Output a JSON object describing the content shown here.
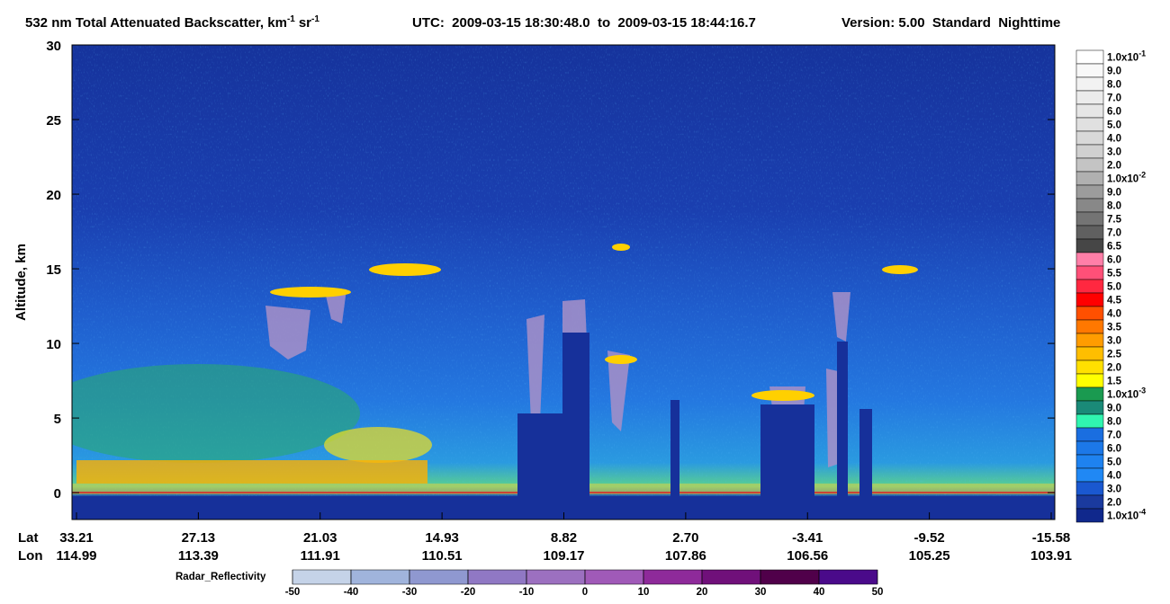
{
  "chart_data": {
    "type": "heatmap",
    "title": [
      "532 nm Total Attenuated Backscatter, km",
      "-1",
      "sr",
      "-1"
    ],
    "time_range": "UTC:  2009-03-15 18:30:48.0  to  2009-03-15 18:44:16.7",
    "version": "Version: 5.00  Standard  Nighttime",
    "ylabel": "Altitude, km",
    "ylim": [
      -1.8,
      30
    ],
    "yticks": [
      0,
      5,
      10,
      15,
      20,
      25,
      30
    ],
    "x_row_labels": [
      "Lat",
      "Lon"
    ],
    "lat": [
      "33.21",
      "27.13",
      "21.03",
      "14.93",
      "8.82",
      "2.70",
      "-3.41",
      "-9.52",
      "-15.58"
    ],
    "lon": [
      "114.99",
      "113.39",
      "111.91",
      "110.51",
      "109.17",
      "107.86",
      "106.56",
      "105.25",
      "103.91"
    ],
    "colorbar": [
      {
        "label": "1.0x10",
        "sup": "-1",
        "color": "#ffffff"
      },
      {
        "label": "9.0",
        "color": "#f8f8f8"
      },
      {
        "label": "8.0",
        "color": "#f2f2f2"
      },
      {
        "label": "7.0",
        "color": "#ececec"
      },
      {
        "label": "6.0",
        "color": "#e6e6e6"
      },
      {
        "label": "5.0",
        "color": "#e0e0e0"
      },
      {
        "label": "4.0",
        "color": "#d8d8d8"
      },
      {
        "label": "3.0",
        "color": "#d0d0d0"
      },
      {
        "label": "2.0",
        "color": "#c4c4c4"
      },
      {
        "label": "1.0x10",
        "sup": "-2",
        "color": "#b0b0b0"
      },
      {
        "label": "9.0",
        "color": "#9c9c9c"
      },
      {
        "label": "8.0",
        "color": "#888888"
      },
      {
        "label": "7.5",
        "color": "#747474"
      },
      {
        "label": "7.0",
        "color": "#606060"
      },
      {
        "label": "6.5",
        "color": "#464646"
      },
      {
        "label": "6.0",
        "color": "#ff7fa8"
      },
      {
        "label": "5.5",
        "color": "#ff5078"
      },
      {
        "label": "5.0",
        "color": "#ff2840"
      },
      {
        "label": "4.5",
        "color": "#ff0000"
      },
      {
        "label": "4.0",
        "color": "#ff5000"
      },
      {
        "label": "3.5",
        "color": "#ff7800"
      },
      {
        "label": "3.0",
        "color": "#ff9c00"
      },
      {
        "label": "2.5",
        "color": "#ffbe00"
      },
      {
        "label": "2.0",
        "color": "#ffe000"
      },
      {
        "label": "1.5",
        "color": "#ffff00"
      },
      {
        "label": "1.0x10",
        "sup": "-3",
        "color": "#1a9a50"
      },
      {
        "label": "9.0",
        "color": "#1a8a78"
      },
      {
        "label": "8.0",
        "color": "#30f5b0"
      },
      {
        "label": "7.0",
        "color": "#1a6ee0"
      },
      {
        "label": "6.0",
        "color": "#1c78e8"
      },
      {
        "label": "5.0",
        "color": "#1e82f0"
      },
      {
        "label": "4.0",
        "color": "#2088f4"
      },
      {
        "label": "3.0",
        "color": "#1a58d0"
      },
      {
        "label": "2.0",
        "color": "#1a3a9e"
      },
      {
        "label": "1.0x10",
        "sup": "-4",
        "color": "#10288c"
      }
    ],
    "radar_label": "Radar_Reflectivity",
    "radar_lim": [
      -50,
      50
    ],
    "radar_ticks": [
      -50,
      -40,
      -30,
      -20,
      -10,
      0,
      10,
      20,
      30,
      40,
      50
    ],
    "radar_colors": [
      "#c5d3e8",
      "#a0b4dc",
      "#8f98d0",
      "#9078c4",
      "#9c70c0",
      "#a05ab8",
      "#8e2a9a",
      "#70107a",
      "#50004a",
      "#4a0a8a"
    ]
  }
}
